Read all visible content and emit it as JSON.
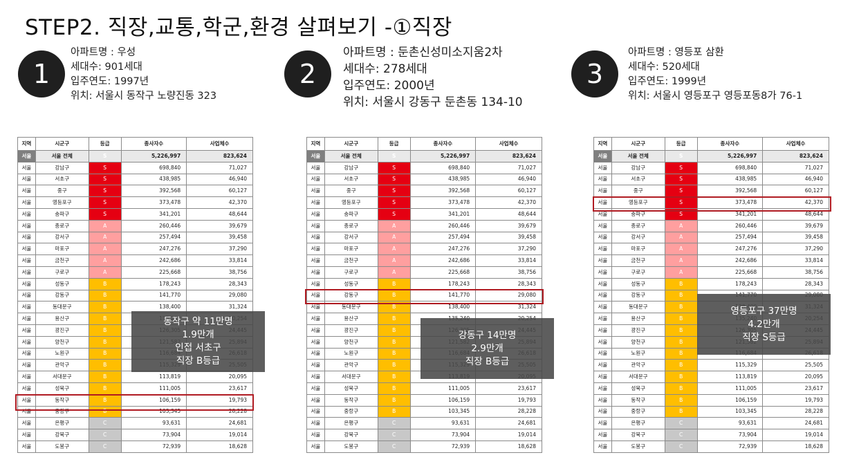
{
  "title": "STEP2. 직장,교통,학군,환경 살펴보기 -①직장",
  "panels": [
    {
      "number": "1",
      "apt": "아파트명 : 우성",
      "households": "세대수: 901세대",
      "year": "입주연도: 1997년",
      "location": "위치: 서울시 동작구 노량진동 323",
      "note": [
        "동작구 약 11만명",
        "1.9만개",
        "인접 서초구",
        "직장 B등급"
      ]
    },
    {
      "number": "2",
      "apt": "아파트명 : 둔촌신성미소지움2차",
      "households": "세대수: 278세대",
      "year": "입주연도: 2000년",
      "location": "위치: 서울시 강동구 둔촌동 134-10",
      "note": [
        "강동구 14만명",
        "2.9만개",
        "직장 B등급"
      ]
    },
    {
      "number": "3",
      "apt": "아파트명 : 영등포 삼환",
      "households": "세대수: 520세대",
      "year": "입주연도: 1999년",
      "location": "위치: 서울시 영등포구 영등포동8가 76-1",
      "note": [
        "영등포구 37만명",
        "4.2만개",
        "직장 S등급"
      ]
    }
  ],
  "table": {
    "headers": [
      "지역",
      "시군구",
      "등급",
      "종사자수",
      "사업체수"
    ],
    "total": [
      "서울",
      "서울 전체",
      "S",
      "5,226,997",
      "823,624"
    ],
    "rows": [
      [
        "서울",
        "강남구",
        "S",
        "698,840",
        "71,027"
      ],
      [
        "서울",
        "서초구",
        "S",
        "438,985",
        "46,940"
      ],
      [
        "서울",
        "중구",
        "S",
        "392,568",
        "60,127"
      ],
      [
        "서울",
        "영등포구",
        "S",
        "373,478",
        "42,370"
      ],
      [
        "서울",
        "송파구",
        "S",
        "341,201",
        "48,644"
      ],
      [
        "서울",
        "종로구",
        "A",
        "260,446",
        "39,679"
      ],
      [
        "서울",
        "강서구",
        "A",
        "257,494",
        "39,458"
      ],
      [
        "서울",
        "마포구",
        "A",
        "247,276",
        "37,290"
      ],
      [
        "서울",
        "금천구",
        "A",
        "242,686",
        "33,814"
      ],
      [
        "서울",
        "구로구",
        "A",
        "225,668",
        "38,756"
      ],
      [
        "서울",
        "성동구",
        "B",
        "178,243",
        "28,343"
      ],
      [
        "서울",
        "강동구",
        "B",
        "141,770",
        "29,080"
      ],
      [
        "서울",
        "동대문구",
        "B",
        "138,400",
        "31,324"
      ],
      [
        "서울",
        "용산구",
        "B",
        "135,240",
        "20,254"
      ],
      [
        "서울",
        "광진구",
        "B",
        "126,305",
        "24,445"
      ],
      [
        "서울",
        "양천구",
        "B",
        "121,582",
        "25,894"
      ],
      [
        "서울",
        "노원구",
        "B",
        "116,684",
        "26,618"
      ],
      [
        "서울",
        "관악구",
        "B",
        "115,329",
        "25,505"
      ],
      [
        "서울",
        "서대문구",
        "B",
        "113,819",
        "20,095"
      ],
      [
        "서울",
        "성북구",
        "B",
        "111,005",
        "23,617"
      ],
      [
        "서울",
        "동작구",
        "B",
        "106,159",
        "19,793"
      ],
      [
        "서울",
        "중랑구",
        "B",
        "103,345",
        "28,228"
      ],
      [
        "서울",
        "은평구",
        "C",
        "93,631",
        "24,681"
      ],
      [
        "서울",
        "강북구",
        "C",
        "73,904",
        "19,014"
      ],
      [
        "서울",
        "도봉구",
        "C",
        "72,939",
        "18,628"
      ]
    ]
  },
  "colors": {
    "S": "#e50012",
    "A": "#ff9f9f",
    "B": "#ffbe00",
    "C": "#c8c8c8",
    "highlight": "#b01b22"
  }
}
